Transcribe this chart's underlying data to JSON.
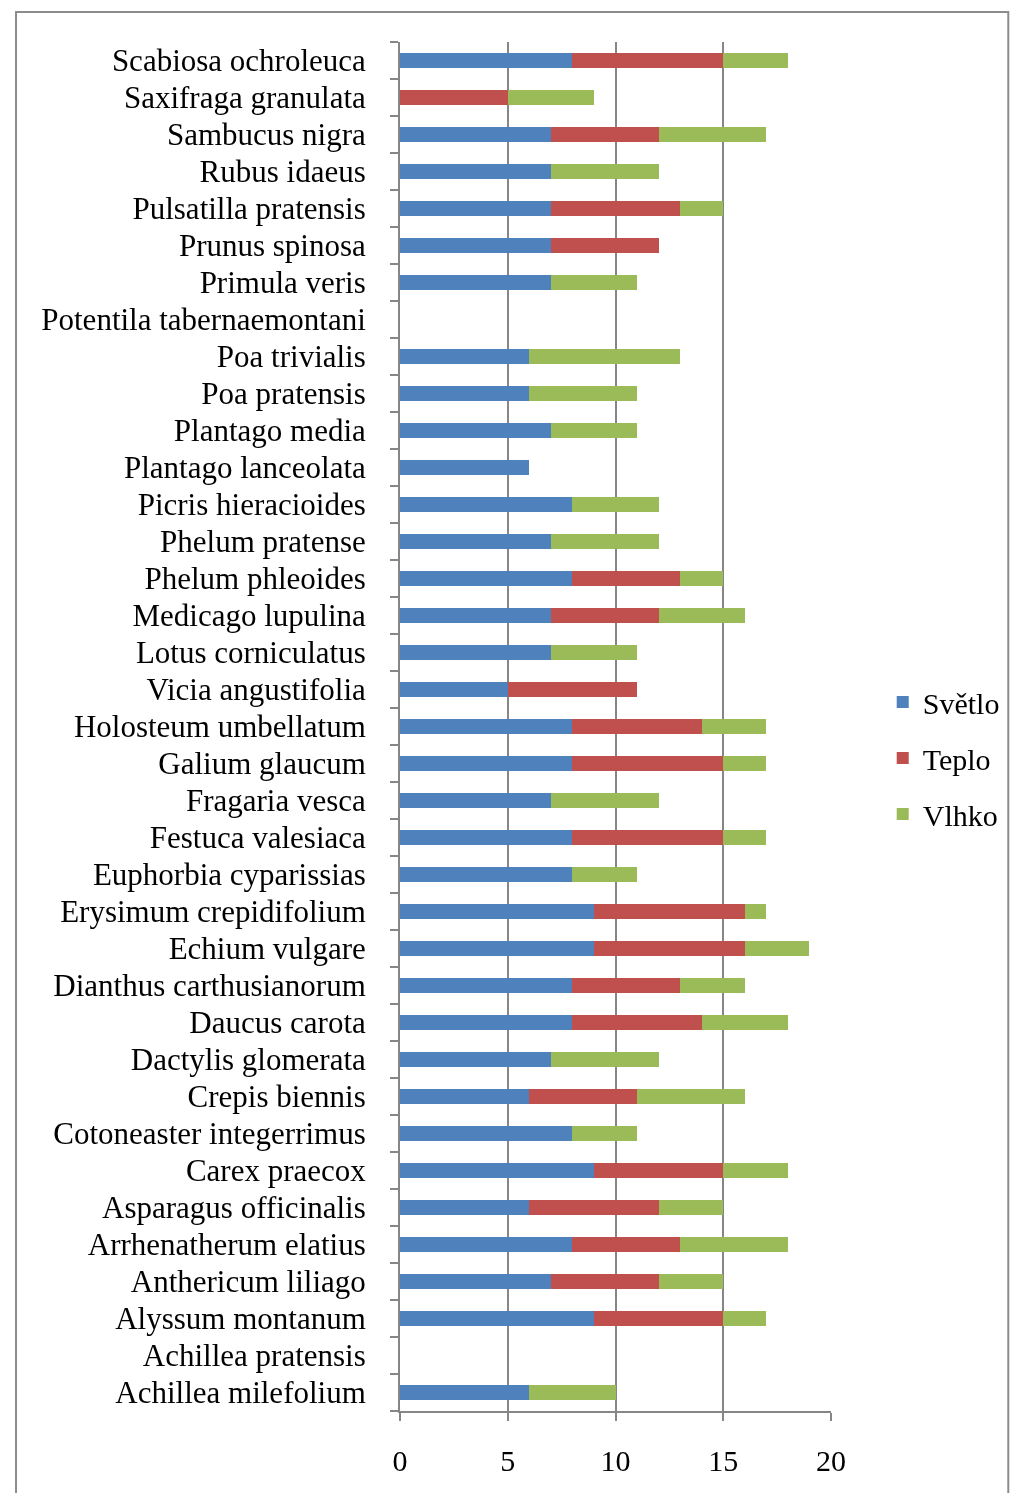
{
  "chart_data": {
    "type": "bar",
    "orientation": "horizontal",
    "stacked": true,
    "categories": [
      "Scabiosa ochroleuca",
      "Saxifraga granulata",
      "Sambucus nigra",
      "Rubus idaeus",
      "Pulsatilla pratensis",
      "Prunus spinosa",
      "Primula veris",
      "Potentila tabernaemontani",
      "Poa trivialis",
      "Poa pratensis",
      "Plantago media",
      "Plantago lanceolata",
      "Picris hieracioides",
      "Phelum pratense",
      "Phelum phleoides",
      "Medicago lupulina",
      "Lotus corniculatus",
      "Vicia angustifolia",
      "Holosteum umbellatum",
      "Galium glaucum",
      "Fragaria vesca",
      "Festuca valesiaca",
      "Euphorbia cyparissias",
      "Erysimum crepidifolium",
      "Echium vulgare",
      "Dianthus carthusianorum",
      "Daucus carota",
      "Dactylis glomerata",
      "Crepis biennis",
      "Cotoneaster integerrimus",
      "Carex praecox",
      "Asparagus officinalis",
      "Arrhenatherum elatius",
      "Anthericum liliago",
      "Alyssum montanum",
      "Achillea pratensis",
      "Achillea milefolium"
    ],
    "series": [
      {
        "name": "Světlo",
        "color": "#4f81bd",
        "values": [
          8,
          null,
          7,
          7,
          7,
          7,
          7,
          null,
          6,
          6,
          7,
          6,
          8,
          7,
          8,
          7,
          7,
          5,
          8,
          8,
          7,
          8,
          8,
          9,
          9,
          8,
          8,
          7,
          6,
          8,
          9,
          6,
          8,
          7,
          9,
          null,
          6
        ]
      },
      {
        "name": "Teplo",
        "color": "#c0504d",
        "values": [
          7,
          5,
          5,
          null,
          6,
          5,
          null,
          null,
          null,
          null,
          null,
          null,
          null,
          null,
          5,
          5,
          null,
          6,
          6,
          7,
          null,
          7,
          null,
          7,
          7,
          5,
          6,
          null,
          5,
          null,
          6,
          6,
          5,
          5,
          6,
          null,
          null
        ]
      },
      {
        "name": "Vlhko",
        "color": "#9bbb59",
        "values": [
          3,
          4,
          5,
          5,
          2,
          null,
          4,
          null,
          7,
          5,
          4,
          null,
          4,
          5,
          2,
          4,
          4,
          null,
          3,
          2,
          5,
          2,
          3,
          1,
          3,
          3,
          4,
          5,
          5,
          3,
          3,
          3,
          5,
          3,
          2,
          null,
          4
        ]
      }
    ],
    "xlim": [
      0,
      20
    ],
    "xticks": [
      0,
      5,
      10,
      15,
      20
    ],
    "grid": "x",
    "legend": "right"
  }
}
